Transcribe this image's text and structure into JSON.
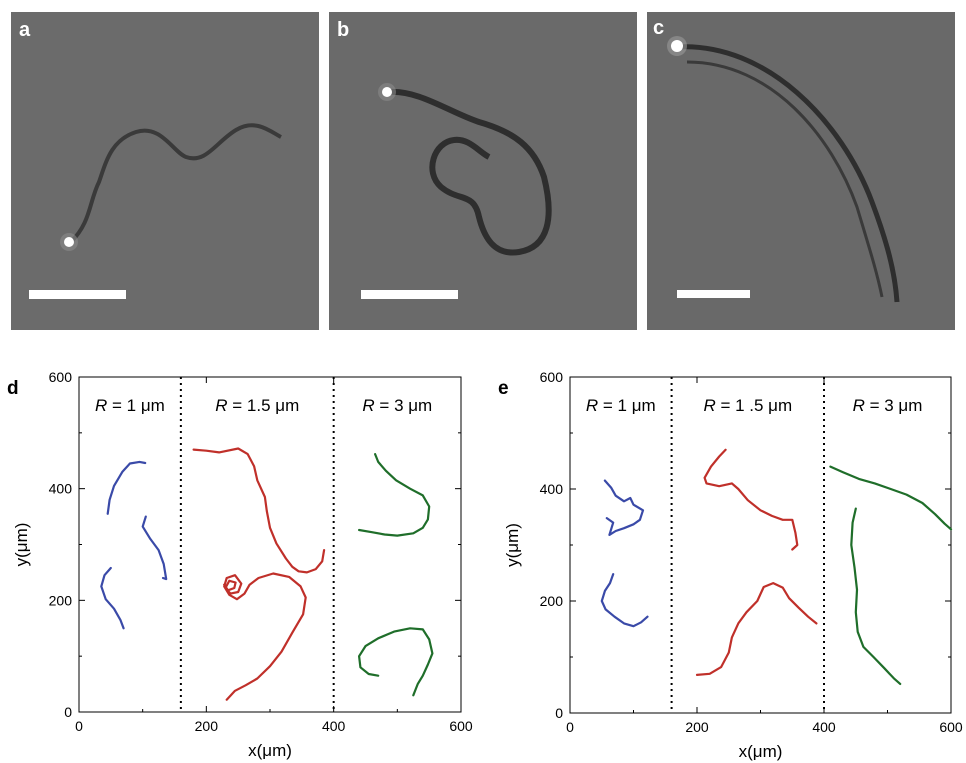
{
  "panels_top": [
    {
      "letter": "a",
      "background": "#6b6b6b"
    },
    {
      "letter": "b",
      "background": "#6a6a6a"
    },
    {
      "letter": "c",
      "background": "#696969"
    }
  ],
  "colors": {
    "R1": "#3a4aa8",
    "R15": "#c0302a",
    "R3": "#1f6e2a"
  },
  "chart_data": [
    {
      "panel": "d",
      "type": "line",
      "xlabel_pre": "x(",
      "xlabel_mu": "μ",
      "xlabel_post": "m)",
      "ylabel": "y(μm)",
      "xlim": [
        0,
        600
      ],
      "ylim": [
        0,
        600
      ],
      "xticks": [
        0,
        200,
        400,
        600
      ],
      "yticks": [
        0,
        200,
        400,
        600
      ],
      "dividers_x": [
        160,
        400
      ],
      "region_labels": [
        {
          "italic": "R",
          "text": " = 1 μm"
        },
        {
          "italic": "R",
          "text": " = 1.5 μm"
        },
        {
          "italic": "R",
          "text": " = 3 μm"
        }
      ],
      "series": [
        {
          "group": "R1",
          "points": [
            [
              45,
              355
            ],
            [
              48,
              380
            ],
            [
              55,
              405
            ],
            [
              68,
              430
            ],
            [
              80,
              445
            ],
            [
              95,
              448
            ],
            [
              104,
              446
            ]
          ]
        },
        {
          "group": "R1",
          "points": [
            [
              105,
              350
            ],
            [
              100,
              332
            ],
            [
              112,
              310
            ],
            [
              125,
              290
            ],
            [
              133,
              265
            ],
            [
              137,
              238
            ],
            [
              132,
              240
            ]
          ]
        },
        {
          "group": "R1",
          "points": [
            [
              50,
              258
            ],
            [
              40,
              245
            ],
            [
              35,
              225
            ],
            [
              42,
              202
            ],
            [
              55,
              185
            ],
            [
              65,
              165
            ],
            [
              70,
              150
            ]
          ]
        },
        {
          "group": "R15",
          "points": [
            [
              180,
              470
            ],
            [
              200,
              468
            ],
            [
              220,
              465
            ],
            [
              250,
              472
            ],
            [
              265,
              462
            ],
            [
              275,
              440
            ],
            [
              280,
              415
            ],
            [
              292,
              385
            ],
            [
              295,
              360
            ],
            [
              300,
              330
            ],
            [
              310,
              302
            ],
            [
              325,
              275
            ],
            [
              335,
              260
            ],
            [
              345,
              252
            ],
            [
              358,
              250
            ],
            [
              372,
              256
            ],
            [
              382,
              270
            ],
            [
              385,
              290
            ]
          ]
        },
        {
          "group": "R15",
          "points": [
            [
              232,
              22
            ],
            [
              245,
              38
            ],
            [
              262,
              48
            ],
            [
              280,
              60
            ],
            [
              300,
              82
            ],
            [
              318,
              108
            ],
            [
              335,
              142
            ],
            [
              352,
              175
            ],
            [
              356,
              205
            ],
            [
              348,
              225
            ],
            [
              330,
              242
            ],
            [
              305,
              248
            ],
            [
              282,
              240
            ],
            [
              268,
              228
            ],
            [
              260,
              212
            ],
            [
              248,
              202
            ],
            [
              236,
              210
            ],
            [
              228,
              225
            ],
            [
              232,
              240
            ],
            [
              245,
              245
            ],
            [
              255,
              230
            ],
            [
              250,
              215
            ],
            [
              238,
              212
            ],
            [
              230,
              222
            ],
            [
              236,
              235
            ],
            [
              246,
              232
            ],
            [
              244,
              222
            ],
            [
              234,
              218
            ],
            [
              228,
              228
            ]
          ]
        },
        {
          "group": "R3",
          "points": [
            [
              465,
              462
            ],
            [
              470,
              448
            ],
            [
              482,
              432
            ],
            [
              498,
              415
            ],
            [
              520,
              400
            ],
            [
              540,
              388
            ],
            [
              550,
              368
            ],
            [
              548,
              345
            ],
            [
              540,
              330
            ],
            [
              525,
              320
            ],
            [
              500,
              316
            ],
            [
              480,
              318
            ],
            [
              460,
              322
            ],
            [
              440,
              326
            ]
          ]
        },
        {
          "group": "R3",
          "points": [
            [
              470,
              65
            ],
            [
              455,
              68
            ],
            [
              442,
              80
            ],
            [
              440,
              100
            ],
            [
              450,
              118
            ],
            [
              470,
              132
            ],
            [
              495,
              144
            ],
            [
              520,
              150
            ],
            [
              540,
              148
            ],
            [
              550,
              130
            ],
            [
              555,
              105
            ],
            [
              548,
              85
            ],
            [
              540,
              65
            ],
            [
              532,
              50
            ],
            [
              525,
              30
            ]
          ]
        }
      ]
    },
    {
      "panel": "e",
      "type": "line",
      "xlabel_pre": "x(",
      "xlabel_mu": "μ",
      "xlabel_post": "m)",
      "ylabel": "y(μm)",
      "xlim": [
        0,
        600
      ],
      "ylim": [
        0,
        600
      ],
      "xticks": [
        0,
        200,
        400,
        600
      ],
      "yticks": [
        0,
        200,
        400,
        600
      ],
      "dividers_x": [
        160,
        400
      ],
      "region_labels": [
        {
          "italic": "R",
          "text": " = 1 μm"
        },
        {
          "italic": "R",
          "text": " = 1 .5 μm"
        },
        {
          "italic": "R",
          "text": " = 3 μm"
        }
      ],
      "series": [
        {
          "group": "R1",
          "points": [
            [
              55,
              415
            ],
            [
              65,
              402
            ],
            [
              72,
              388
            ],
            [
              85,
              378
            ],
            [
              95,
              384
            ],
            [
              100,
              372
            ],
            [
              115,
              362
            ],
            [
              110,
              345
            ],
            [
              100,
              337
            ],
            [
              85,
              330
            ],
            [
              72,
              325
            ],
            [
              62,
              318
            ],
            [
              68,
              340
            ],
            [
              58,
              348
            ]
          ]
        },
        {
          "group": "R1",
          "points": [
            [
              68,
              248
            ],
            [
              63,
              232
            ],
            [
              55,
              218
            ],
            [
              50,
              200
            ],
            [
              56,
              185
            ],
            [
              70,
              172
            ],
            [
              85,
              160
            ],
            [
              100,
              155
            ],
            [
              112,
              162
            ],
            [
              122,
              172
            ]
          ]
        },
        {
          "group": "R15",
          "points": [
            [
              245,
              470
            ],
            [
              235,
              458
            ],
            [
              222,
              440
            ],
            [
              212,
              420
            ],
            [
              215,
              410
            ],
            [
              235,
              405
            ],
            [
              255,
              410
            ],
            [
              265,
              400
            ],
            [
              280,
              380
            ],
            [
              300,
              362
            ],
            [
              318,
              352
            ],
            [
              335,
              345
            ],
            [
              350,
              345
            ],
            [
              355,
              322
            ],
            [
              358,
              300
            ],
            [
              350,
              292
            ]
          ]
        },
        {
          "group": "R15",
          "points": [
            [
              200,
              68
            ],
            [
              220,
              70
            ],
            [
              238,
              82
            ],
            [
              250,
              108
            ],
            [
              255,
              135
            ],
            [
              265,
              160
            ],
            [
              278,
              180
            ],
            [
              295,
              200
            ],
            [
              305,
              225
            ],
            [
              320,
              232
            ],
            [
              335,
              224
            ],
            [
              345,
              205
            ],
            [
              360,
              188
            ],
            [
              375,
              172
            ],
            [
              388,
              160
            ]
          ]
        },
        {
          "group": "R3",
          "points": [
            [
              410,
              440
            ],
            [
              430,
              430
            ],
            [
              455,
              418
            ],
            [
              480,
              410
            ],
            [
              505,
              400
            ],
            [
              530,
              390
            ],
            [
              555,
              375
            ],
            [
              575,
              355
            ],
            [
              590,
              338
            ],
            [
              600,
              328
            ]
          ]
        },
        {
          "group": "R3",
          "points": [
            [
              450,
              365
            ],
            [
              445,
              340
            ],
            [
              443,
              300
            ],
            [
              448,
              260
            ],
            [
              452,
              220
            ],
            [
              450,
              180
            ],
            [
              453,
              145
            ],
            [
              462,
              118
            ],
            [
              478,
              100
            ],
            [
              495,
              80
            ],
            [
              510,
              62
            ],
            [
              520,
              52
            ]
          ]
        }
      ]
    }
  ]
}
